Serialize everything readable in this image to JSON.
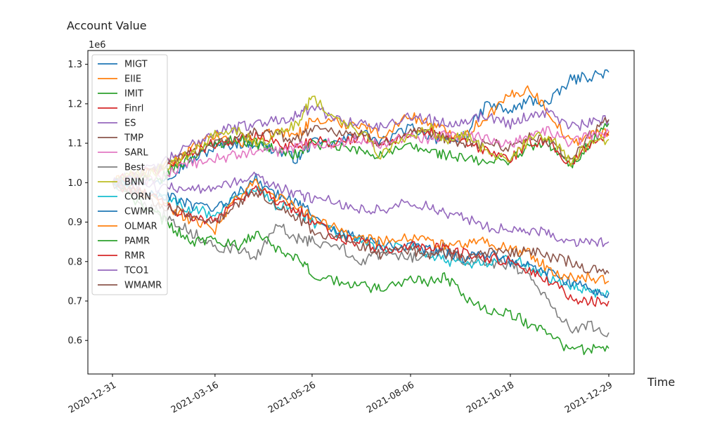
{
  "chart_data": {
    "type": "line",
    "title": "Account Value",
    "ylabel": "",
    "xlabel": "Time",
    "y_offset_label": "1e6",
    "ylim": [
      0.515,
      1.335
    ],
    "yticks": [
      0.6,
      0.7,
      0.8,
      0.9,
      1.0,
      1.1,
      1.2,
      1.3
    ],
    "ytick_labels": [
      "0.6",
      "0.7",
      "0.8",
      "0.9",
      "1.0",
      "1.1",
      "1.2",
      "1.3"
    ],
    "x_dates": [
      "2020-12-31",
      "2021-01-15",
      "2021-02-01",
      "2021-02-15",
      "2021-03-01",
      "2021-03-16",
      "2021-04-01",
      "2021-04-15",
      "2021-05-01",
      "2021-05-15",
      "2021-05-26",
      "2021-06-15",
      "2021-07-01",
      "2021-07-15",
      "2021-08-06",
      "2021-08-20",
      "2021-09-01",
      "2021-09-15",
      "2021-10-01",
      "2021-10-18",
      "2021-11-01",
      "2021-11-15",
      "2021-12-01",
      "2021-12-15",
      "2021-12-29"
    ],
    "xticks": [
      "2020-12-31",
      "2021-03-16",
      "2021-05-26",
      "2021-08-06",
      "2021-10-18",
      "2021-12-29"
    ],
    "legend_position": "upper-left",
    "series": [
      {
        "name": "MIGT",
        "color": "#1f77b4",
        "values": [
          1.0,
          1.01,
          1.0,
          1.03,
          1.06,
          1.09,
          1.1,
          1.1,
          1.08,
          1.06,
          1.1,
          1.1,
          1.13,
          1.1,
          1.14,
          1.12,
          1.1,
          1.12,
          1.2,
          1.18,
          1.21,
          1.2,
          1.26,
          1.27,
          1.28
        ]
      },
      {
        "name": "EIIE",
        "color": "#ff7f0e",
        "values": [
          1.0,
          1.02,
          1.03,
          1.06,
          1.09,
          1.12,
          1.1,
          1.11,
          1.13,
          1.12,
          1.16,
          1.15,
          1.15,
          1.12,
          1.17,
          1.15,
          1.13,
          1.12,
          1.17,
          1.22,
          1.24,
          1.18,
          1.1,
          1.12,
          1.13
        ]
      },
      {
        "name": "IMIT",
        "color": "#2ca02c",
        "values": [
          1.0,
          1.01,
          1.0,
          1.04,
          1.07,
          1.1,
          1.11,
          1.1,
          1.08,
          1.07,
          1.1,
          1.09,
          1.08,
          1.07,
          1.09,
          1.08,
          1.07,
          1.06,
          1.05,
          1.06,
          1.09,
          1.1,
          1.04,
          1.1,
          1.15
        ]
      },
      {
        "name": "Finrl",
        "color": "#d62728",
        "values": [
          1.0,
          1.02,
          1.03,
          1.05,
          1.08,
          1.1,
          1.11,
          1.12,
          1.1,
          1.09,
          1.11,
          1.1,
          1.12,
          1.1,
          1.12,
          1.13,
          1.11,
          1.1,
          1.08,
          1.06,
          1.1,
          1.11,
          1.04,
          1.1,
          1.12
        ]
      },
      {
        "name": "ES",
        "color": "#9467bd",
        "values": [
          1.0,
          1.02,
          1.04,
          1.07,
          1.1,
          1.13,
          1.14,
          1.15,
          1.16,
          1.17,
          1.19,
          1.16,
          1.15,
          1.14,
          1.17,
          1.16,
          1.15,
          1.16,
          1.17,
          1.15,
          1.17,
          1.18,
          1.14,
          1.15,
          1.16
        ]
      },
      {
        "name": "TMP",
        "color": "#8c564b",
        "values": [
          1.0,
          1.01,
          1.03,
          1.06,
          1.08,
          1.1,
          1.11,
          1.13,
          1.12,
          1.11,
          1.14,
          1.13,
          1.12,
          1.1,
          1.13,
          1.12,
          1.11,
          1.1,
          1.1,
          1.09,
          1.12,
          1.1,
          1.06,
          1.12,
          1.16
        ]
      },
      {
        "name": "SARL",
        "color": "#e377c2",
        "values": [
          1.0,
          1.0,
          1.01,
          1.03,
          1.05,
          1.06,
          1.07,
          1.08,
          1.08,
          1.09,
          1.1,
          1.1,
          1.11,
          1.1,
          1.12,
          1.11,
          1.12,
          1.12,
          1.11,
          1.1,
          1.12,
          1.13,
          1.1,
          1.12,
          1.13
        ]
      },
      {
        "name": "Best",
        "color": "#7f7f7f",
        "values": [
          1.0,
          0.97,
          0.93,
          0.9,
          0.87,
          0.84,
          0.83,
          0.81,
          0.89,
          0.86,
          0.85,
          0.84,
          0.8,
          0.82,
          0.81,
          0.82,
          0.84,
          0.8,
          0.8,
          0.79,
          0.77,
          0.7,
          0.63,
          0.64,
          0.62
        ]
      },
      {
        "name": "BNN",
        "color": "#bcbd22",
        "values": [
          1.0,
          1.02,
          1.03,
          1.05,
          1.08,
          1.12,
          1.13,
          1.1,
          1.12,
          1.15,
          1.22,
          1.15,
          1.13,
          1.07,
          1.12,
          1.14,
          1.1,
          1.12,
          1.08,
          1.06,
          1.11,
          1.12,
          1.05,
          1.1,
          1.11
        ]
      },
      {
        "name": "CORN",
        "color": "#17becf",
        "values": [
          1.0,
          0.99,
          0.97,
          0.95,
          0.93,
          0.92,
          0.96,
          0.99,
          0.94,
          0.93,
          0.9,
          0.87,
          0.85,
          0.83,
          0.84,
          0.82,
          0.8,
          0.79,
          0.8,
          0.81,
          0.79,
          0.76,
          0.74,
          0.72,
          0.72
        ]
      },
      {
        "name": "CWMR",
        "color": "#1f77b4",
        "values": [
          1.0,
          0.99,
          0.97,
          0.96,
          0.94,
          0.93,
          0.97,
          1.01,
          0.97,
          0.95,
          0.92,
          0.87,
          0.86,
          0.84,
          0.84,
          0.83,
          0.82,
          0.81,
          0.82,
          0.8,
          0.79,
          0.77,
          0.75,
          0.73,
          0.72
        ]
      },
      {
        "name": "OLMAR",
        "color": "#ff7f0e",
        "values": [
          1.0,
          0.98,
          0.96,
          0.93,
          0.9,
          0.88,
          0.96,
          1.0,
          0.96,
          0.94,
          0.91,
          0.88,
          0.86,
          0.85,
          0.86,
          0.85,
          0.84,
          0.84,
          0.85,
          0.83,
          0.82,
          0.78,
          0.76,
          0.76,
          0.75
        ]
      },
      {
        "name": "PAMR",
        "color": "#2ca02c",
        "values": [
          1.0,
          0.96,
          0.92,
          0.88,
          0.85,
          0.86,
          0.84,
          0.87,
          0.83,
          0.81,
          0.77,
          0.75,
          0.74,
          0.73,
          0.75,
          0.75,
          0.76,
          0.71,
          0.68,
          0.67,
          0.64,
          0.62,
          0.57,
          0.58,
          0.58
        ]
      },
      {
        "name": "RMR",
        "color": "#d62728",
        "values": [
          1.0,
          0.98,
          0.96,
          0.93,
          0.91,
          0.9,
          0.95,
          0.99,
          0.95,
          0.93,
          0.9,
          0.86,
          0.85,
          0.83,
          0.84,
          0.84,
          0.83,
          0.82,
          0.81,
          0.8,
          0.78,
          0.75,
          0.71,
          0.7,
          0.7
        ]
      },
      {
        "name": "TCO1",
        "color": "#9467bd",
        "values": [
          1.0,
          0.99,
          0.99,
          0.99,
          0.98,
          0.99,
          1.0,
          1.02,
          0.99,
          0.97,
          0.96,
          0.95,
          0.93,
          0.93,
          0.95,
          0.94,
          0.92,
          0.91,
          0.89,
          0.88,
          0.88,
          0.87,
          0.85,
          0.85,
          0.85
        ]
      },
      {
        "name": "WMAMR",
        "color": "#8c564b",
        "values": [
          1.0,
          0.98,
          0.95,
          0.93,
          0.91,
          0.9,
          0.94,
          0.98,
          0.94,
          0.91,
          0.88,
          0.86,
          0.84,
          0.82,
          0.83,
          0.82,
          0.82,
          0.81,
          0.82,
          0.82,
          0.83,
          0.81,
          0.8,
          0.78,
          0.77
        ]
      }
    ]
  }
}
